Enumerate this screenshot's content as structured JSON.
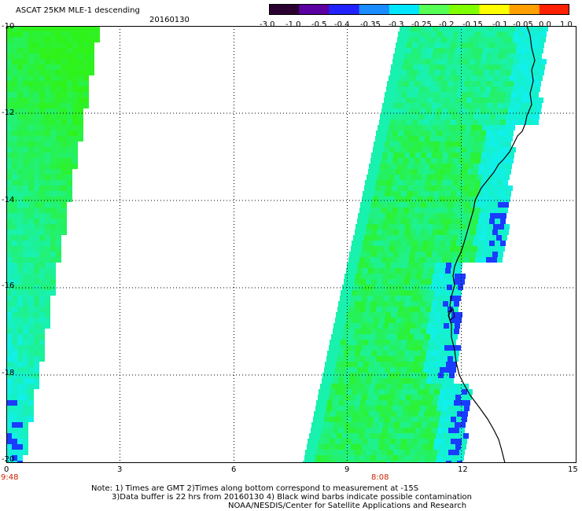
{
  "header": {
    "title": "ASCAT 25KM MLE-1 descending",
    "date": "20160130"
  },
  "colorbar": {
    "tick_labels": [
      "-3.0",
      "-1.0",
      "-0.5",
      "-0.4",
      "-0.35",
      "-0.3",
      "-0.25",
      "-0.2",
      "-0.15",
      "-0.1",
      "-0.05",
      "0.0",
      "1.0"
    ],
    "colors": [
      "#2a0030",
      "#5a00a0",
      "#2222ff",
      "#1a8cff",
      "#00e6ff",
      "#55ff55",
      "#80ff00",
      "#ffff00",
      "#ffa000",
      "#ff2000"
    ]
  },
  "axes": {
    "y_ticks": [
      "-10",
      "-12",
      "-14",
      "-16",
      "-18",
      "-20"
    ],
    "x_ticks": [
      "0",
      "3",
      "6",
      "9",
      "12",
      "15"
    ],
    "time_labels": [
      "9:48",
      "8:08"
    ]
  },
  "swath_palette": {
    "green": "#2ff21a",
    "cyan": "#10f0ee",
    "blue": "#1a3cff",
    "coast": "#000000"
  },
  "footer": {
    "note_line1": "Note: 1) Times are GMT 2)Times along bottom correspond to measurement at -15S",
    "note_line2": "3)Data buffer is 22 hrs from 20160130 4) Black wind barbs indicate possible contamination",
    "note_line3": "NOAA/NESDIS/Center for Satellite Applications and Research"
  }
}
